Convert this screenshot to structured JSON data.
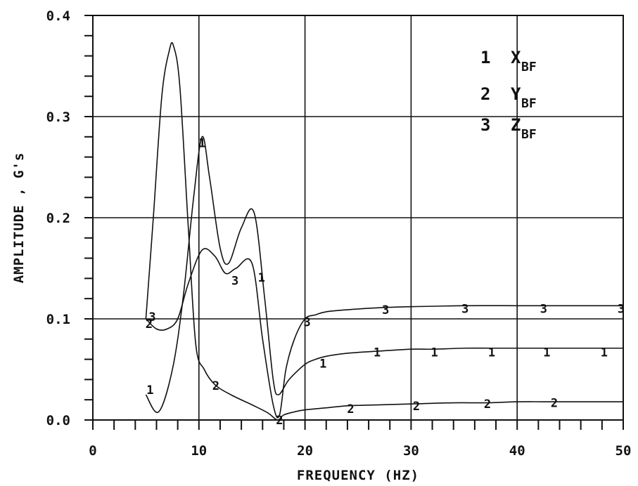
{
  "chart_data": {
    "type": "line",
    "title": "",
    "xlabel": "FREQUENCY (HZ)",
    "ylabel": "AMPLITUDE , G's",
    "xlim": [
      0,
      50
    ],
    "ylim": [
      0.0,
      0.4
    ],
    "x_ticks": [
      "0",
      "10",
      "20",
      "30",
      "40",
      "50"
    ],
    "y_ticks": [
      "0.0",
      "0.1",
      "0.2",
      "0.3",
      "0.4"
    ],
    "grid": true,
    "legend": {
      "placement": "top-right",
      "entries": [
        {
          "marker": "1",
          "label": "X",
          "sub": "BF"
        },
        {
          "marker": "2",
          "label": "Y",
          "sub": "BF"
        },
        {
          "marker": "3",
          "label": "Z",
          "sub": "BF"
        }
      ]
    },
    "series": [
      {
        "marker": "1",
        "x": [
          5,
          6.2,
          7.5,
          8.5,
          9.5,
          10.3,
          11,
          12,
          12.8,
          14,
          15.2,
          16.2,
          17,
          17.5,
          18.5,
          20,
          21,
          22,
          24,
          26.8,
          30,
          32.2,
          35,
          37.6,
          40,
          42.8,
          45,
          48.2,
          50
        ],
        "y": [
          0.025,
          0.008,
          0.05,
          0.12,
          0.22,
          0.28,
          0.24,
          0.17,
          0.155,
          0.19,
          0.205,
          0.12,
          0.04,
          0.025,
          0.04,
          0.055,
          0.06,
          0.063,
          0.066,
          0.068,
          0.07,
          0.07,
          0.071,
          0.071,
          0.071,
          0.071,
          0.071,
          0.071,
          0.071
        ],
        "marker_x": [
          5.4,
          10.3,
          15.9,
          21.7,
          26.8,
          32.2,
          37.6,
          42.8,
          48.2
        ],
        "marker_y": [
          0.03,
          0.274,
          0.141,
          0.056,
          0.067,
          0.067,
          0.067,
          0.067,
          0.067
        ]
      },
      {
        "marker": "2",
        "x": [
          5,
          5.7,
          6.5,
          7.2,
          7.6,
          8.2,
          9,
          9.7,
          10.5,
          11.5,
          13,
          15,
          16.5,
          17.4,
          18,
          19,
          20,
          22,
          24,
          27,
          30.5,
          34,
          37.2,
          40,
          43.5,
          46,
          50
        ],
        "y": [
          0.1,
          0.2,
          0.32,
          0.365,
          0.37,
          0.33,
          0.19,
          0.075,
          0.05,
          0.035,
          0.025,
          0.015,
          0.007,
          0.0,
          0.005,
          0.008,
          0.01,
          0.012,
          0.014,
          0.015,
          0.016,
          0.017,
          0.017,
          0.018,
          0.018,
          0.018,
          0.018
        ],
        "marker_x": [
          5.3,
          11.6,
          17.6,
          24.3,
          30.5,
          37.2,
          43.5
        ],
        "marker_y": [
          0.095,
          0.034,
          0.0,
          0.011,
          0.014,
          0.016,
          0.017
        ]
      },
      {
        "marker": "3",
        "x": [
          5,
          6,
          7,
          8,
          9,
          10.3,
          11.5,
          12.5,
          13.5,
          15,
          16,
          17,
          17.6,
          18.2,
          19,
          20,
          21,
          22,
          24,
          27,
          30,
          35,
          40,
          42.5,
          45,
          50
        ],
        "y": [
          0.1,
          0.09,
          0.09,
          0.1,
          0.135,
          0.168,
          0.162,
          0.145,
          0.15,
          0.155,
          0.08,
          0.015,
          0.005,
          0.05,
          0.08,
          0.1,
          0.104,
          0.107,
          0.109,
          0.111,
          0.112,
          0.113,
          0.113,
          0.113,
          0.113,
          0.113
        ],
        "marker_x": [
          5.6,
          13.4,
          20.2,
          27.6,
          35.1,
          42.5,
          49.8
        ],
        "marker_y": [
          0.102,
          0.138,
          0.097,
          0.109,
          0.11,
          0.11,
          0.11
        ]
      }
    ]
  }
}
